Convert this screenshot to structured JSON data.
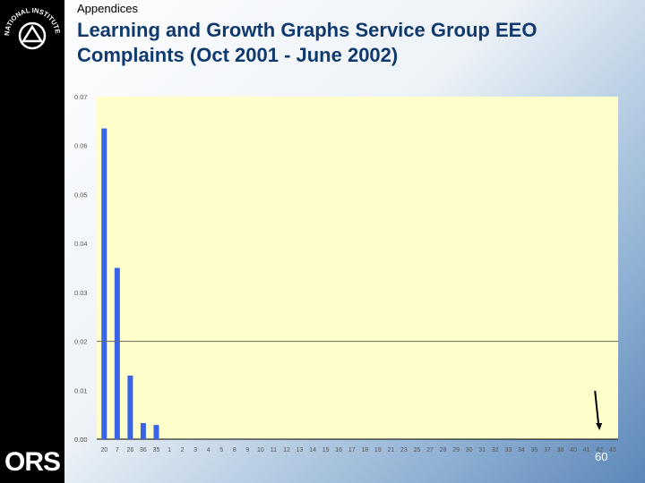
{
  "header": {
    "section": "Appendices",
    "title": "Learning and Growth Graphs Service Group EEO Complaints (Oct 2001 - June 2002)"
  },
  "branding": {
    "seal_text": "NATIONAL INSTITUTES OF HEALTH",
    "logo_text": "ORS"
  },
  "footer": {
    "page_number": "60"
  },
  "colors": {
    "bar": "#3a63e8",
    "plot_background": "#ffffcc",
    "left_bar": "#000000",
    "title": "#103a6e"
  },
  "chart_data": {
    "type": "bar",
    "title": "",
    "xlabel": "",
    "ylabel": "",
    "ylim": [
      0,
      0.07
    ],
    "yticks": [
      0,
      0.01,
      0.02,
      0.03,
      0.04,
      0.05,
      0.06,
      0.07
    ],
    "ytick_labels": [
      "0.00",
      "0.01",
      "0.02",
      "0.03",
      "0.04",
      "0.05",
      "0.06",
      "0.07"
    ],
    "reference_line": 0.02,
    "categories": [
      "20",
      "7",
      "26",
      "36",
      "35",
      "1",
      "2",
      "3",
      "4",
      "5",
      "8",
      "9",
      "10",
      "11",
      "12",
      "13",
      "14",
      "15",
      "16",
      "17",
      "18",
      "19",
      "21",
      "23",
      "25",
      "27",
      "28",
      "29",
      "30",
      "31",
      "32",
      "33",
      "34",
      "35",
      "37",
      "38",
      "40",
      "41",
      "42",
      "43"
    ],
    "values": [
      0.0635,
      0.035,
      0.013,
      0.0033,
      0.0029,
      0,
      0,
      0,
      0,
      0,
      0,
      0,
      0,
      0,
      0,
      0,
      0,
      0,
      0,
      0,
      0,
      0,
      0,
      0,
      0,
      0,
      0,
      0,
      0,
      0,
      0,
      0,
      0,
      0,
      0,
      0,
      0,
      0,
      0,
      0
    ],
    "arrow_category": "42",
    "grid": false
  }
}
